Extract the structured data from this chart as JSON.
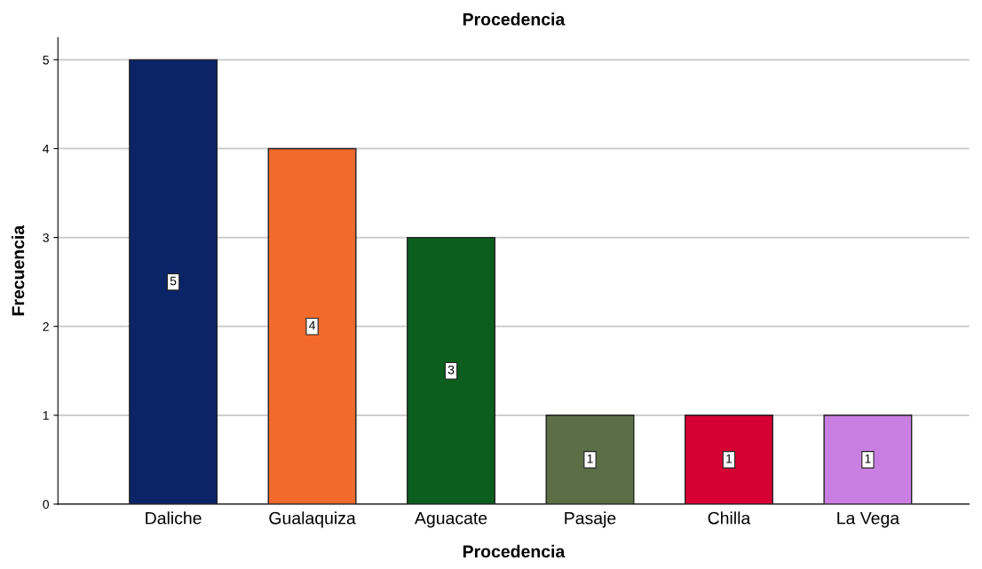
{
  "chart_data": {
    "type": "bar",
    "title": "Procedencia",
    "xlabel": "Procedencia",
    "ylabel": "Frecuencia",
    "categories": [
      "Daliche",
      "Gualaquiza",
      "Aguacate",
      "Pasaje",
      "Chilla",
      "La Vega"
    ],
    "values": [
      5,
      4,
      3,
      1,
      1,
      1
    ],
    "colors": [
      "#0b2468",
      "#f26a2c",
      "#0b5e1e",
      "#5b6e46",
      "#d70033",
      "#c97fe1"
    ],
    "ylim": [
      0,
      5.25
    ],
    "yticks": [
      0,
      1,
      2,
      3,
      4,
      5
    ],
    "grid": "y",
    "data_labels": true
  }
}
